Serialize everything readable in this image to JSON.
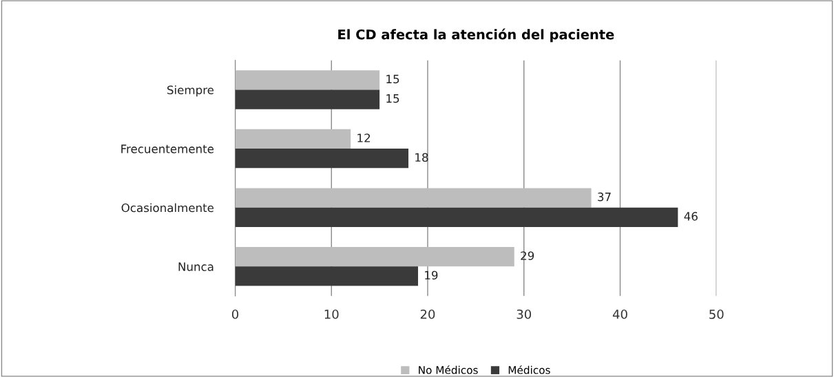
{
  "chart_data": {
    "type": "bar",
    "orientation": "horizontal",
    "title": "El CD afecta la atención del paciente",
    "categories": [
      "Siempre",
      "Frecuentemente",
      "Ocasionalmente",
      "Nunca"
    ],
    "series": [
      {
        "name": "No Médicos",
        "color": "#bdbdbd",
        "values": [
          15,
          12,
          37,
          29
        ]
      },
      {
        "name": "Médicos",
        "color": "#3a3a3a",
        "values": [
          15,
          18,
          46,
          19
        ]
      }
    ],
    "xlim": [
      0,
      50
    ],
    "xticks": [
      0,
      10,
      20,
      30,
      40,
      50
    ],
    "grid": "x",
    "legend": "bottom",
    "data_labels": true
  }
}
